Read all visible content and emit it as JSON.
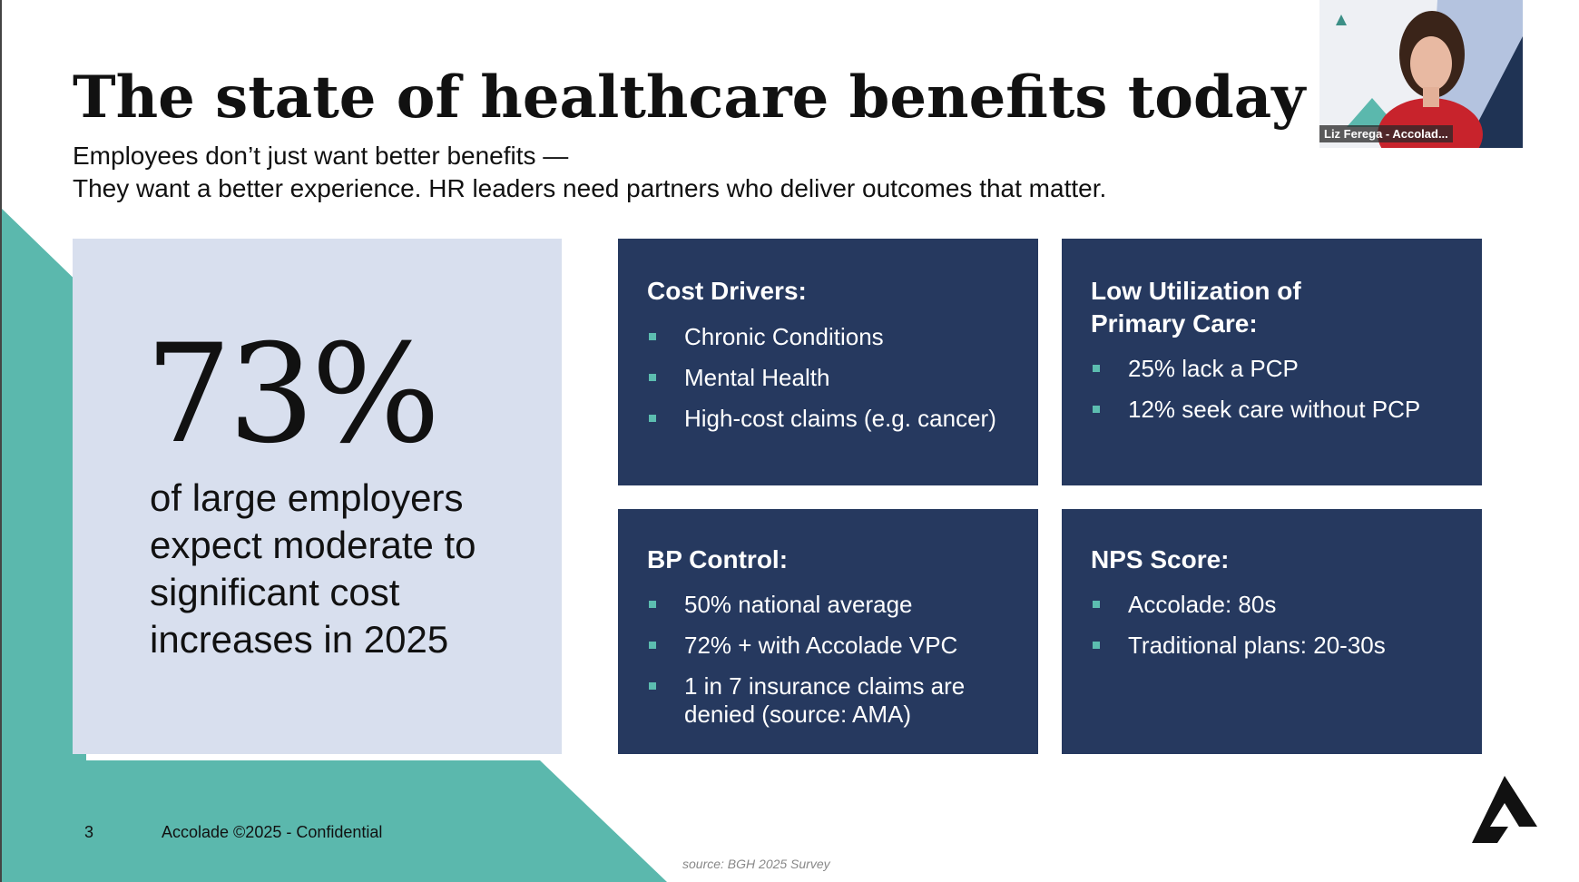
{
  "slide": {
    "title": "The state of healthcare benefits today",
    "subtitle_line1": "Employees don’t just want better benefits —",
    "subtitle_line2": "They want a better experience. HR leaders need partners who deliver outcomes that matter.",
    "stat": {
      "number": "73%",
      "description": "of large employers expect moderate to significant cost increases in 2025"
    },
    "cards": [
      {
        "title": "Cost Drivers:",
        "items": [
          "Chronic Conditions",
          "Mental Health",
          "High-cost claims (e.g. cancer)"
        ]
      },
      {
        "title": "Low Utilization of Primary Care:",
        "items": [
          "25% lack a PCP",
          "12% seek care without PCP"
        ]
      },
      {
        "title": "BP Control:",
        "items": [
          "50% national average",
          "72% + with Accolade VPC",
          "1 in 7 insurance claims are denied (source: AMA)"
        ]
      },
      {
        "title": "NPS Score:",
        "items": [
          "Accolade: 80s",
          "Traditional plans: 20-30s"
        ]
      }
    ],
    "footer": {
      "page_number": "3",
      "confidential": "Accolade ©2025 - Confidential",
      "source": "source: BGH 2025 Survey"
    }
  },
  "video": {
    "participant_name": "Liz Ferega - Accolad..."
  },
  "colors": {
    "card_bg": "#26395f",
    "stat_bg": "#d8dfee",
    "teal": "#5bb8ad",
    "bullet": "#5cbdb0"
  }
}
